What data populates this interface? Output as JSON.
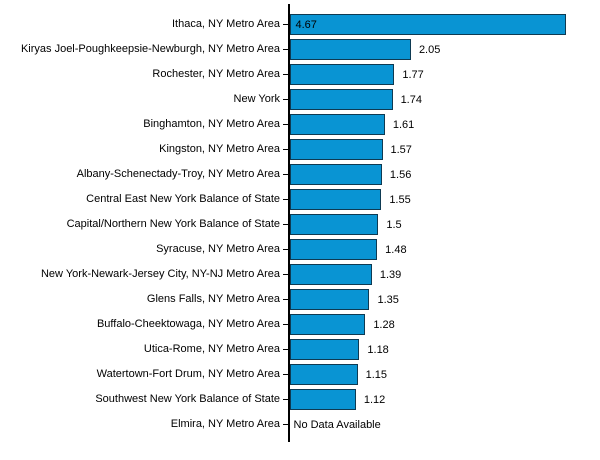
{
  "chart_data": {
    "type": "bar",
    "orientation": "horizontal",
    "title": "",
    "xlabel": "",
    "ylabel": "",
    "grid": false,
    "legend": "none",
    "xlim": [
      0,
      5.25
    ],
    "background_color": "#ffffff",
    "bar_color": "#0994D3",
    "bar_border_color": "#0E3A52",
    "axis_color": "#000000",
    "text_color": "#000000",
    "no_data_text": "No Data Available",
    "categories": [
      "Ithaca, NY Metro Area",
      "Kiryas Joel-Poughkeepsie-Newburgh, NY Metro Area",
      "Rochester, NY Metro Area",
      "New York",
      "Binghamton, NY Metro Area",
      "Kingston, NY Metro Area",
      "Albany-Schenectady-Troy, NY Metro Area",
      "Central East New York Balance of State",
      "Capital/Northern New York Balance of State",
      "Syracuse, NY Metro Area",
      "New York-Newark-Jersey City, NY-NJ Metro Area",
      "Glens Falls, NY Metro Area",
      "Buffalo-Cheektowaga, NY Metro Area",
      "Utica-Rome, NY Metro Area",
      "Watertown-Fort Drum, NY Metro Area",
      "Southwest New York Balance of State",
      "Elmira, NY Metro Area"
    ],
    "values": [
      4.67,
      2.05,
      1.77,
      1.74,
      1.61,
      1.57,
      1.56,
      1.55,
      1.5,
      1.48,
      1.39,
      1.35,
      1.28,
      1.18,
      1.15,
      1.12,
      null
    ],
    "value_labels": [
      "4.67",
      "2.05",
      "1.77",
      "1.74",
      "1.61",
      "1.57",
      "1.56",
      "1.55",
      "1.5",
      "1.48",
      "1.39",
      "1.35",
      "1.28",
      "1.18",
      "1.15",
      "1.12",
      "No Data Available"
    ]
  }
}
